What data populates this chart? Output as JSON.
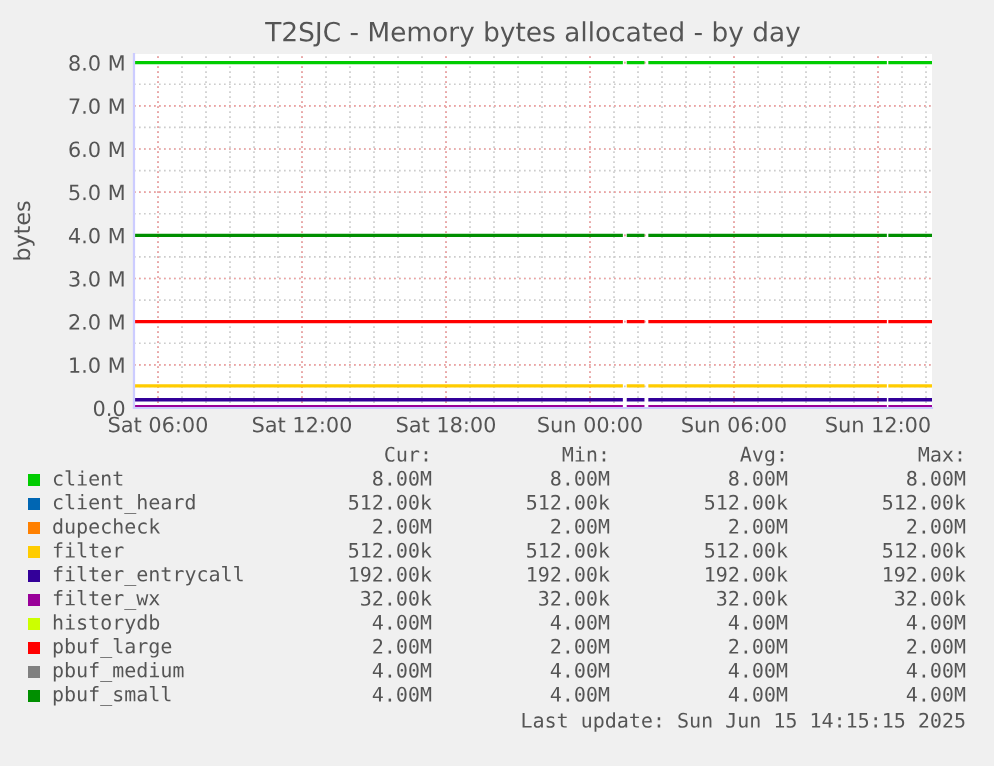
{
  "chart_data": {
    "type": "line",
    "title": "T2SJC - Memory bytes allocated - by day",
    "ylabel": "bytes",
    "x": [
      "2025-06-14T05:00",
      "2025-06-15T01:18",
      "2025-06-15T01:24",
      "2025-06-15T01:36",
      "2025-06-15T02:12",
      "2025-06-15T02:18",
      "2025-06-15T02:30",
      "2025-06-15T12:18",
      "2025-06-15T12:24",
      "2025-06-15T12:30",
      "2025-06-15T14:15"
    ],
    "xlim": [
      "2025-06-14T05:00",
      "2025-06-15T14:15"
    ],
    "xticks": [
      {
        "value": "2025-06-14T06:00",
        "label": "Sat 06:00"
      },
      {
        "value": "2025-06-14T12:00",
        "label": "Sat 12:00"
      },
      {
        "value": "2025-06-14T18:00",
        "label": "Sat 18:00"
      },
      {
        "value": "2025-06-15T00:00",
        "label": "Sun 00:00"
      },
      {
        "value": "2025-06-15T06:00",
        "label": "Sun 06:00"
      },
      {
        "value": "2025-06-15T12:00",
        "label": "Sun 12:00"
      }
    ],
    "ylim": [
      0,
      8200000
    ],
    "yticks": [
      {
        "value": 0,
        "label": "0.0"
      },
      {
        "value": 1000000,
        "label": "1.0 M"
      },
      {
        "value": 2000000,
        "label": "2.0 M"
      },
      {
        "value": 3000000,
        "label": "3.0 M"
      },
      {
        "value": 4000000,
        "label": "4.0 M"
      },
      {
        "value": 5000000,
        "label": "5.0 M"
      },
      {
        "value": 6000000,
        "label": "6.0 M"
      },
      {
        "value": 7000000,
        "label": "7.0 M"
      },
      {
        "value": 8000000,
        "label": "8.0 M"
      }
    ],
    "grid": true,
    "legend": "bottom",
    "marker": "none",
    "line_style": "solid",
    "series": [
      {
        "name": "client",
        "color": "#00cc00",
        "values": [
          8000000,
          8000000,
          null,
          8000000,
          8000000,
          null,
          8000000,
          8000000,
          null,
          8000000,
          8000000
        ]
      },
      {
        "name": "client_heard",
        "color": "#0066b3",
        "values": [
          null,
          null,
          null,
          null,
          null,
          null,
          null,
          null,
          null,
          null,
          null
        ]
      },
      {
        "name": "dupecheck",
        "color": "#ff8000",
        "values": [
          null,
          null,
          null,
          null,
          null,
          null,
          null,
          null,
          null,
          null,
          null
        ]
      },
      {
        "name": "filter",
        "color": "#ffcc00",
        "values": [
          512000,
          512000,
          null,
          512000,
          512000,
          null,
          512000,
          512000,
          null,
          512000,
          512000
        ]
      },
      {
        "name": "filter_entrycall",
        "color": "#330099",
        "values": [
          192000,
          192000,
          null,
          192000,
          192000,
          null,
          192000,
          192000,
          null,
          192000,
          192000
        ]
      },
      {
        "name": "filter_wx",
        "color": "#990099",
        "values": [
          32000,
          32000,
          null,
          32000,
          32000,
          null,
          32000,
          32000,
          null,
          32000,
          32000
        ]
      },
      {
        "name": "historydb",
        "color": "#ccff00",
        "values": [
          null,
          null,
          null,
          null,
          null,
          null,
          null,
          null,
          null,
          null,
          null
        ]
      },
      {
        "name": "pbuf_large",
        "color": "#ff0000",
        "values": [
          2000000,
          2000000,
          null,
          2000000,
          2000000,
          null,
          2000000,
          2000000,
          null,
          2000000,
          2000000
        ]
      },
      {
        "name": "pbuf_medium",
        "color": "#808080",
        "values": [
          null,
          null,
          null,
          null,
          null,
          null,
          null,
          null,
          null,
          null,
          null
        ]
      },
      {
        "name": "pbuf_small",
        "color": "#008f00",
        "values": [
          4000000,
          4000000,
          null,
          4000000,
          4000000,
          null,
          4000000,
          4000000,
          null,
          4000000,
          4000000
        ]
      }
    ],
    "annotations": [
      "Cur:",
      "Min:",
      "Avg:",
      "Max:",
      "8.00M",
      "8.00M",
      "8.00M",
      "8.00M",
      "512.00k",
      "512.00k",
      "512.00k",
      "512.00k",
      "2.00M",
      "2.00M",
      "2.00M",
      "2.00M",
      "512.00k",
      "512.00k",
      "512.00k",
      "512.00k",
      "192.00k",
      "192.00k",
      "192.00k",
      "192.00k",
      "32.00k",
      "32.00k",
      "32.00k",
      "32.00k",
      "4.00M",
      "4.00M",
      "4.00M",
      "4.00M",
      "2.00M",
      "2.00M",
      "2.00M",
      "2.00M",
      "4.00M",
      "4.00M",
      "4.00M",
      "4.00M",
      "4.00M",
      "4.00M",
      "4.00M",
      "4.00M",
      "Last update: Sun Jun 15 14:15:15 2025"
    ]
  }
}
